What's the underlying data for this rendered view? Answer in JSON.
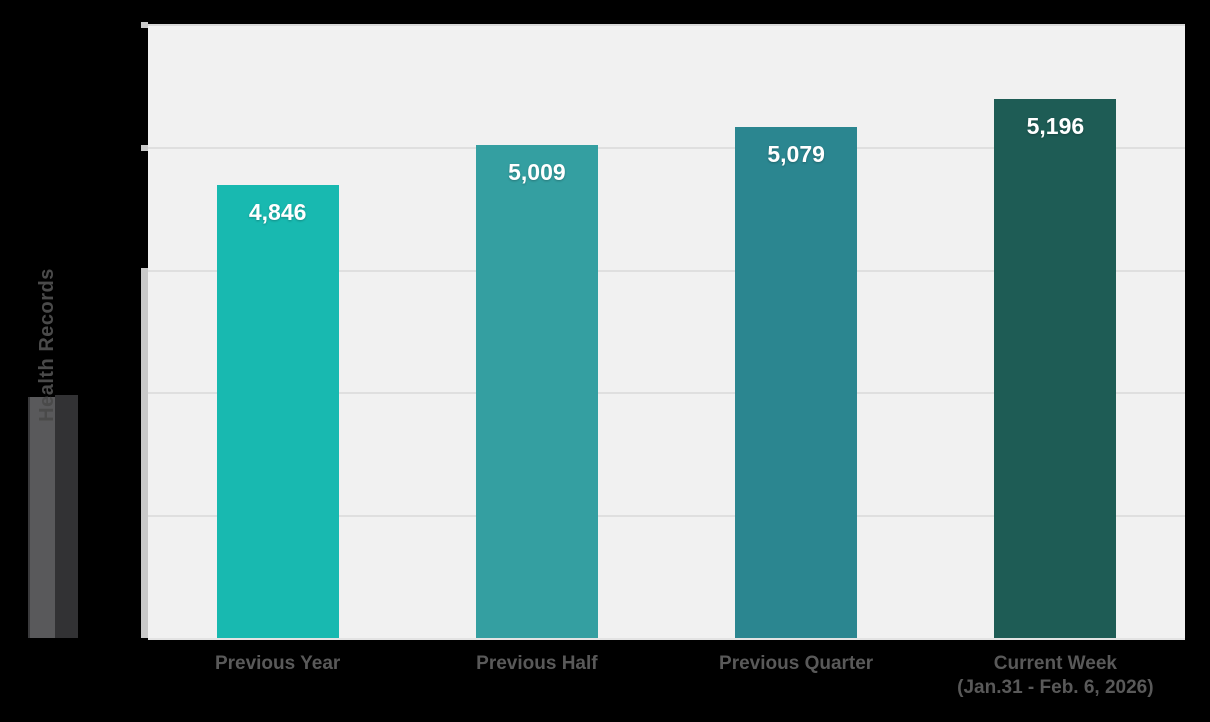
{
  "background_color": "#000000",
  "chart_data": {
    "type": "bar",
    "title": "",
    "xlabel": "",
    "ylabel": "Health Records",
    "categories": [
      {
        "line1": "Previous Year",
        "line2": ""
      },
      {
        "line1": "Previous Half",
        "line2": ""
      },
      {
        "line1": "Previous Quarter",
        "line2": ""
      },
      {
        "line1": "Current Week",
        "line2": "(Jan.31 - Feb. 6, 2026)"
      }
    ],
    "values": [
      4846,
      5009,
      5079,
      5196
    ],
    "value_labels": [
      "4,846",
      "5,009",
      "5,079",
      "5,196"
    ],
    "bar_colors": [
      "#18b9b0",
      "#349fa1",
      "#2b8690",
      "#1e5c55"
    ],
    "ylim": [
      3000,
      5500
    ],
    "gridline_interval": 500,
    "grid": "horizontal",
    "y_tick_labels_visible": false,
    "legend_position": "none",
    "plot_background": "#f1f1f1",
    "gridline_color": "#dfdfdf",
    "axis_tick_color": "#c9c9c9",
    "value_label_color": "#ffffff",
    "category_label_color": "#595959"
  },
  "decor": {
    "left_bar_medium_color": "#59595b",
    "left_bar_dark_color": "#323234"
  }
}
